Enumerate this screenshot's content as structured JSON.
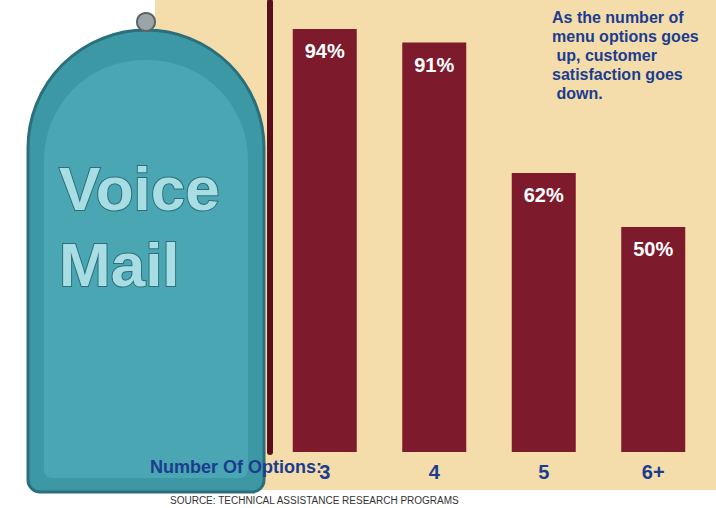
{
  "chart_data": {
    "type": "bar",
    "x_label": "Number Of Options:",
    "categories": [
      "3",
      "4",
      "5",
      "6+"
    ],
    "values": [
      94,
      91,
      62,
      50
    ],
    "value_labels": [
      "94%",
      "91%",
      "62%",
      "50%"
    ],
    "data_labels": true,
    "color": "#7d1a2b",
    "ylim": [
      0,
      100
    ],
    "grid": false,
    "tick_labels": "x",
    "annotations": [
      "As the number of menu options goes up, customer satisfaction goes down.",
      "Voice Mail"
    ],
    "source": "SOURCE: TECHNICAL ASSISTANCE RESEARCH PROGRAMS"
  }
}
